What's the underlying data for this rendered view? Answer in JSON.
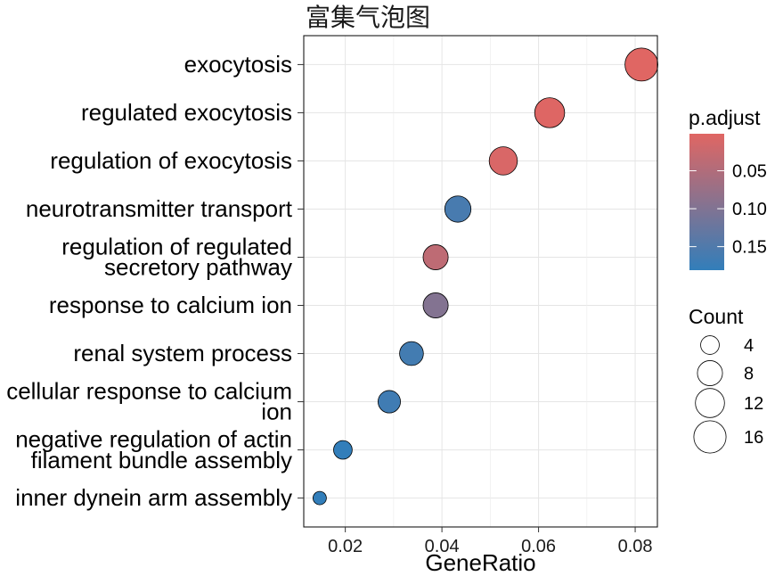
{
  "chart_data": {
    "type": "scatter",
    "title": "富集气泡图",
    "xlabel": "GeneRatio",
    "xlim": [
      0.0114,
      0.0846
    ],
    "xticks": [
      {
        "value": 0.02,
        "label": "0.02"
      },
      {
        "value": 0.04,
        "label": "0.04"
      },
      {
        "value": 0.06,
        "label": "0.06"
      },
      {
        "value": 0.08,
        "label": "0.08"
      }
    ],
    "grid": true,
    "points": [
      {
        "label": [
          "exocytosis"
        ],
        "x": 0.0813,
        "count": 17,
        "p_adjust": 0.0012
      },
      {
        "label": [
          "regulated exocytosis"
        ],
        "x": 0.0623,
        "count": 13,
        "p_adjust": 0.0035
      },
      {
        "label": [
          "regulation of exocytosis"
        ],
        "x": 0.0527,
        "count": 11,
        "p_adjust": 0.0085
      },
      {
        "label": [
          "neurotransmitter transport"
        ],
        "x": 0.0433,
        "count": 9,
        "p_adjust": 0.158
      },
      {
        "label": [
          "regulation of regulated",
          "secretory pathway"
        ],
        "x": 0.0387,
        "count": 8,
        "p_adjust": 0.036
      },
      {
        "label": [
          "response to calcium ion"
        ],
        "x": 0.0387,
        "count": 8,
        "p_adjust": 0.097
      },
      {
        "label": [
          "renal system process"
        ],
        "x": 0.0337,
        "count": 7,
        "p_adjust": 0.163
      },
      {
        "label": [
          "cellular response to calcium",
          "ion"
        ],
        "x": 0.0291,
        "count": 6,
        "p_adjust": 0.167
      },
      {
        "label": [
          "negative regulation of actin",
          "filament bundle assembly"
        ],
        "x": 0.0195,
        "count": 4,
        "p_adjust": 0.181
      },
      {
        "label": [
          "inner dynein arm assembly"
        ],
        "x": 0.0147,
        "count": 3,
        "p_adjust": 0.181
      }
    ],
    "color_legend": {
      "title": "p.adjust",
      "low_color": "#e06663",
      "high_color": "#327eba",
      "limits": [
        0.0012,
        0.181
      ],
      "breaks": [
        {
          "value": 0.05,
          "label": "0.05"
        },
        {
          "value": 0.1,
          "label": "0.10"
        },
        {
          "value": 0.15,
          "label": "0.15"
        }
      ]
    },
    "size_legend": {
      "title": "Count",
      "breaks": [
        {
          "value": 4,
          "label": "4"
        },
        {
          "value": 8,
          "label": "8"
        },
        {
          "value": 12,
          "label": "12"
        },
        {
          "value": 16,
          "label": "16"
        }
      ]
    },
    "legend_position": "right"
  }
}
